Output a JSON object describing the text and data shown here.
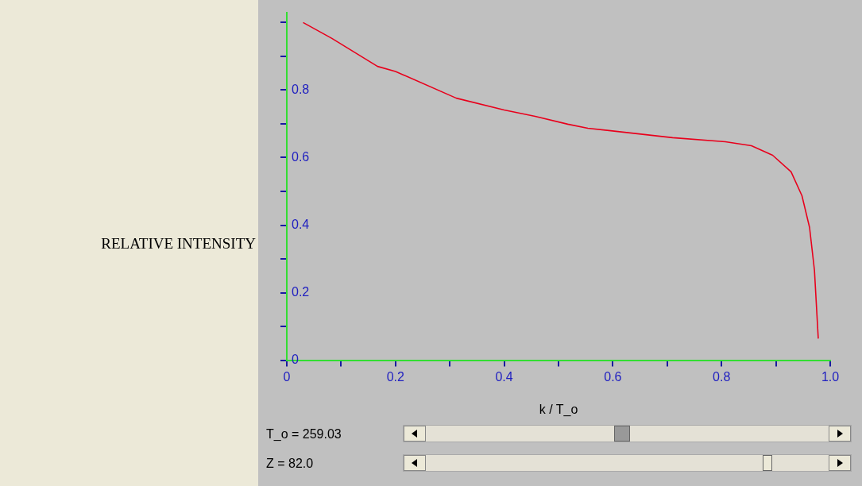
{
  "chart_data": {
    "type": "line",
    "xlabel": "k / T_o",
    "ylabel": "RELATIVE INTENSITY",
    "xlim": [
      0,
      1.0
    ],
    "ylim": [
      0,
      1.03
    ],
    "xticks": [
      0,
      {
        "value": 0.1,
        "label": null
      },
      0.2,
      {
        "value": 0.3,
        "label": null
      },
      0.4,
      {
        "value": 0.5,
        "label": null
      },
      0.6,
      {
        "value": 0.7,
        "label": null
      },
      0.8,
      {
        "value": 0.9,
        "label": null
      },
      {
        "value": 1,
        "label": "1.0"
      }
    ],
    "yticks": [
      0,
      {
        "value": 0.1,
        "label": null
      },
      0.2,
      {
        "value": 0.3,
        "label": null
      },
      0.4,
      {
        "value": 0.5,
        "label": null
      },
      0.6,
      {
        "value": 0.7,
        "label": null
      },
      0.8,
      {
        "value": 0.9,
        "label": null
      },
      {
        "value": 1,
        "label": null
      }
    ],
    "series": [
      {
        "color": "#e8001c",
        "x": [
          0.03,
          0.083,
          0.167,
          0.2,
          0.312,
          0.4,
          0.457,
          0.517,
          0.554,
          0.71,
          0.807,
          0.855,
          0.894,
          0.928,
          0.948,
          0.962,
          0.971,
          0.978
        ],
        "values": [
          1.0,
          0.953,
          0.87,
          0.855,
          0.776,
          0.741,
          0.722,
          0.699,
          0.687,
          0.659,
          0.647,
          0.635,
          0.607,
          0.558,
          0.487,
          0.393,
          0.266,
          0.064
        ]
      }
    ],
    "grid": false,
    "legend": false,
    "marker": "none",
    "line_style": "solid",
    "annotations": [
      "T_o = 259.03",
      "Z = 82.0"
    ]
  }
}
